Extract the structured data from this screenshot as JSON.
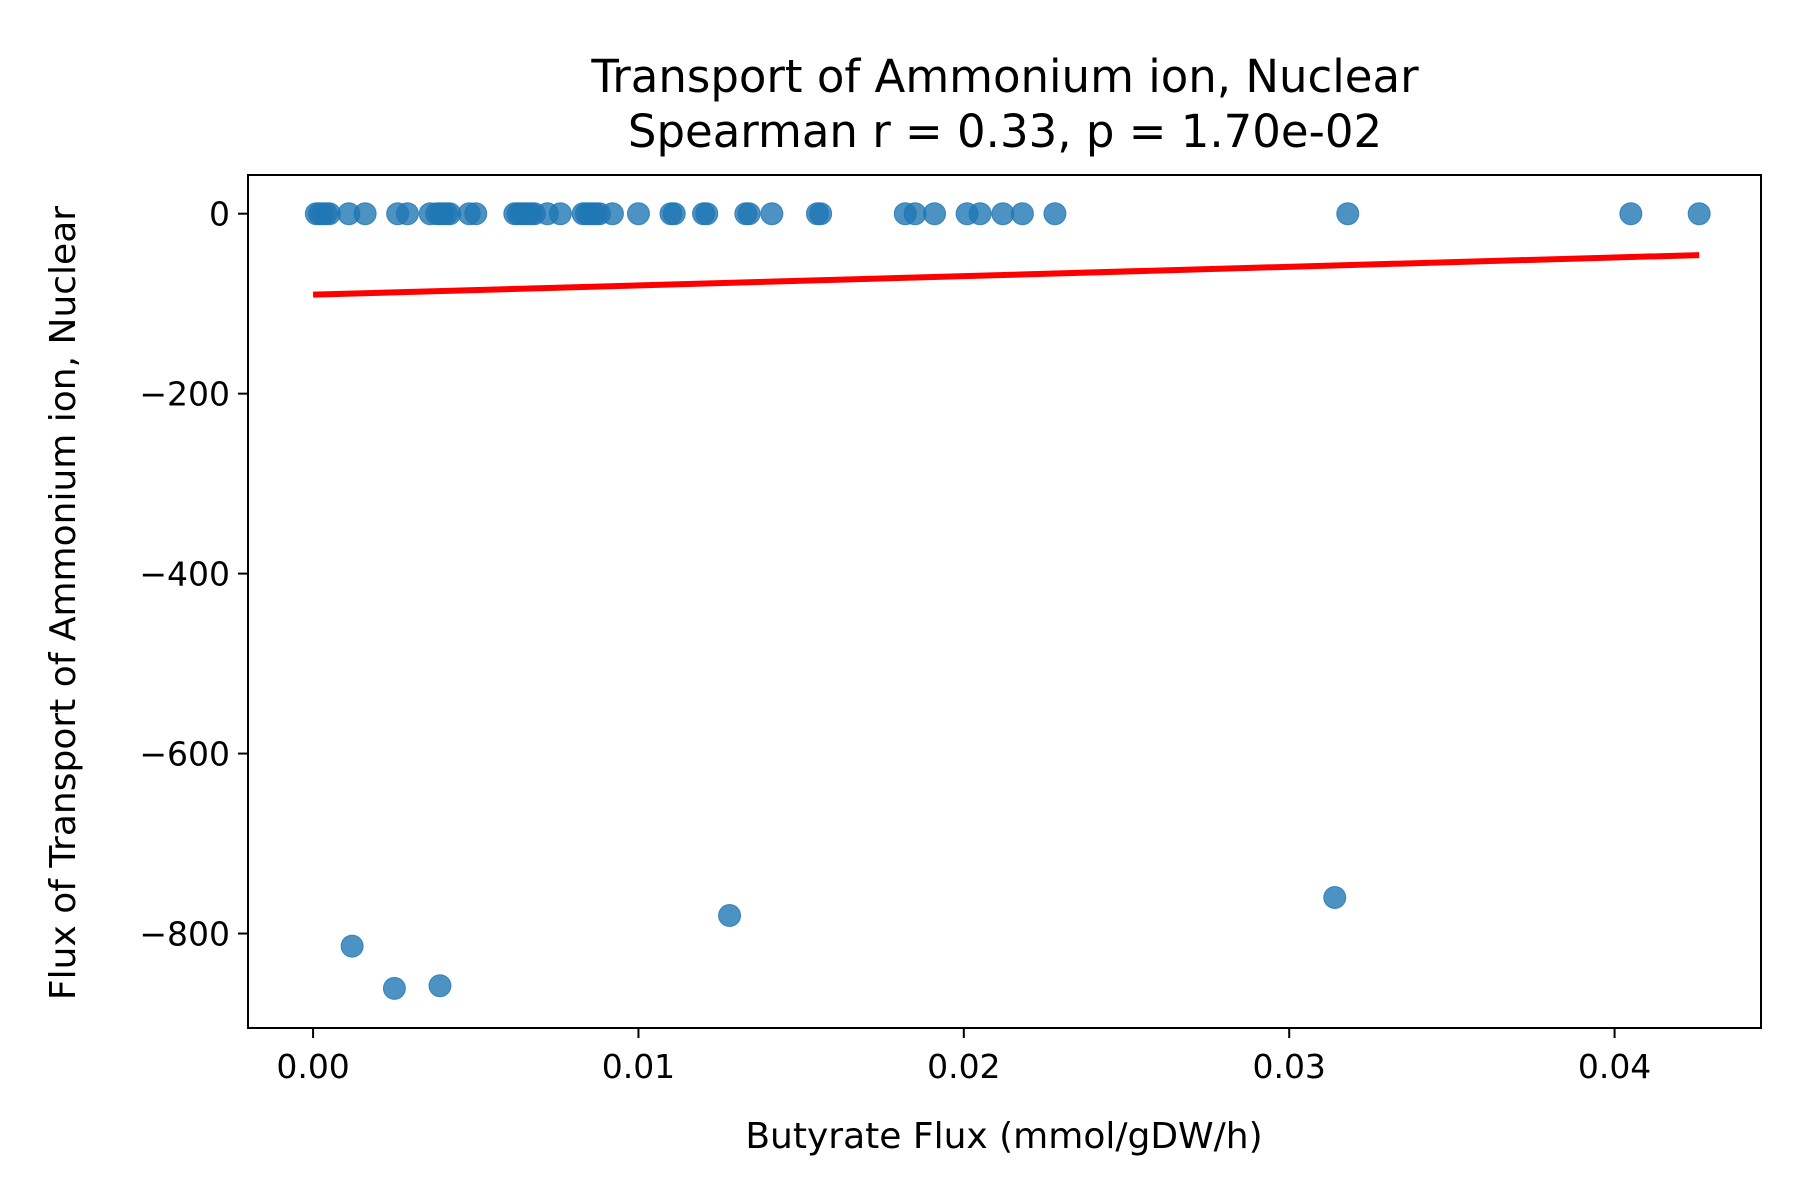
{
  "chart_data": {
    "type": "scatter",
    "title": "Transport of Ammonium ion, Nuclear",
    "subtitle": "Spearman r = 0.33, p = 1.70e-02",
    "xlabel": "Butyrate Flux (mmol/gDW/h)",
    "ylabel": "Flux of Transport of Ammonium ion, Nuclear",
    "xlim": [
      -0.002,
      0.0445
    ],
    "ylim": [
      -905,
      43
    ],
    "xticks": [
      0.0,
      0.01,
      0.02,
      0.03,
      0.04
    ],
    "xtick_labels": [
      "0.00",
      "0.01",
      "0.02",
      "0.03",
      "0.04"
    ],
    "yticks": [
      0,
      -200,
      -400,
      -600,
      -800
    ],
    "ytick_labels": [
      "0",
      "−200",
      "−400",
      "−600",
      "−800"
    ],
    "grid": false,
    "colors": {
      "points": "#1f77b4",
      "fit_line": "#ff0000"
    },
    "series": [
      {
        "x": [
          0.0001,
          0.0002,
          0.0003,
          0.0004,
          0.0005,
          0.0011,
          0.0016,
          0.0026,
          0.0029,
          0.0036,
          0.0038,
          0.0039,
          0.004,
          0.0041,
          0.0042,
          0.0048,
          0.005,
          0.0062,
          0.0063,
          0.0064,
          0.0065,
          0.0066,
          0.0067,
          0.0068,
          0.0072,
          0.0076,
          0.0083,
          0.0084,
          0.0085,
          0.0086,
          0.0087,
          0.0088,
          0.0092,
          0.01,
          0.011,
          0.0111,
          0.012,
          0.0121,
          0.0133,
          0.0134,
          0.0141,
          0.0155,
          0.0156,
          0.0182,
          0.0185,
          0.0191,
          0.0201,
          0.0205,
          0.0212,
          0.0218,
          0.0228,
          0.0318,
          0.0405,
          0.0426,
          0.0012,
          0.0025,
          0.0039,
          0.0128,
          0.0314
        ],
        "y": [
          0,
          0,
          0,
          0,
          0,
          0,
          0,
          0,
          0,
          0,
          0,
          0,
          0,
          0,
          0,
          0,
          0,
          0,
          0,
          0,
          0,
          0,
          0,
          0,
          0,
          0,
          0,
          0,
          0,
          0,
          0,
          0,
          0,
          0,
          0,
          0,
          0,
          0,
          0,
          0,
          0,
          0,
          0,
          0,
          0,
          0,
          0,
          0,
          0,
          0,
          0,
          0,
          0,
          0,
          -814,
          -861,
          -858,
          -780,
          -760
        ]
      }
    ],
    "fit_line": {
      "x": [
        0.0,
        0.0426
      ],
      "y": [
        -90,
        -46
      ]
    }
  }
}
